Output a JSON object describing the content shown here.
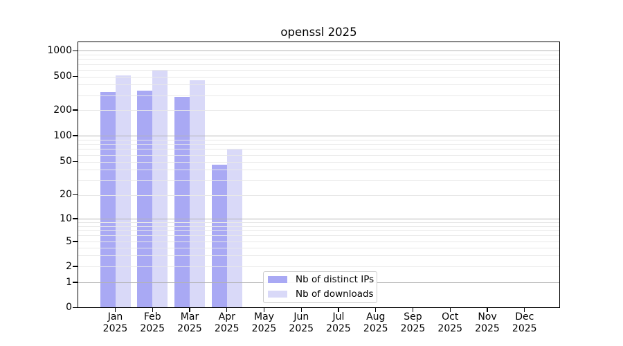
{
  "chart_data": {
    "type": "bar",
    "title": "openssl 2025",
    "x_months": [
      "Jan",
      "Feb",
      "Mar",
      "Apr",
      "May",
      "Jun",
      "Jul",
      "Aug",
      "Sep",
      "Oct",
      "Nov",
      "Dec"
    ],
    "x_year": "2025",
    "series": [
      {
        "name": "Nb of distinct IPs",
        "color": "#a9a9f4",
        "values": [
          330,
          340,
          285,
          46,
          null,
          null,
          null,
          null,
          null,
          null,
          null,
          null
        ]
      },
      {
        "name": "Nb of downloads",
        "color": "#d9d9f8",
        "values": [
          520,
          600,
          455,
          70,
          null,
          null,
          null,
          null,
          null,
          null,
          null,
          null
        ]
      }
    ],
    "y_ticks": [
      0,
      1,
      2,
      5,
      10,
      20,
      50,
      100,
      200,
      500,
      1000
    ],
    "ylim": [
      0,
      1000
    ],
    "yscale": "log-like",
    "grid": true,
    "legend_position": "lower center"
  },
  "colors": {
    "bar_distinct_ips": "#a9a9f4",
    "bar_downloads": "#d9d9f8",
    "grid_major": "#b2b2b2",
    "grid_minor": "#e8e8e8",
    "axis": "#000000",
    "legend_border": "#cccccc"
  }
}
